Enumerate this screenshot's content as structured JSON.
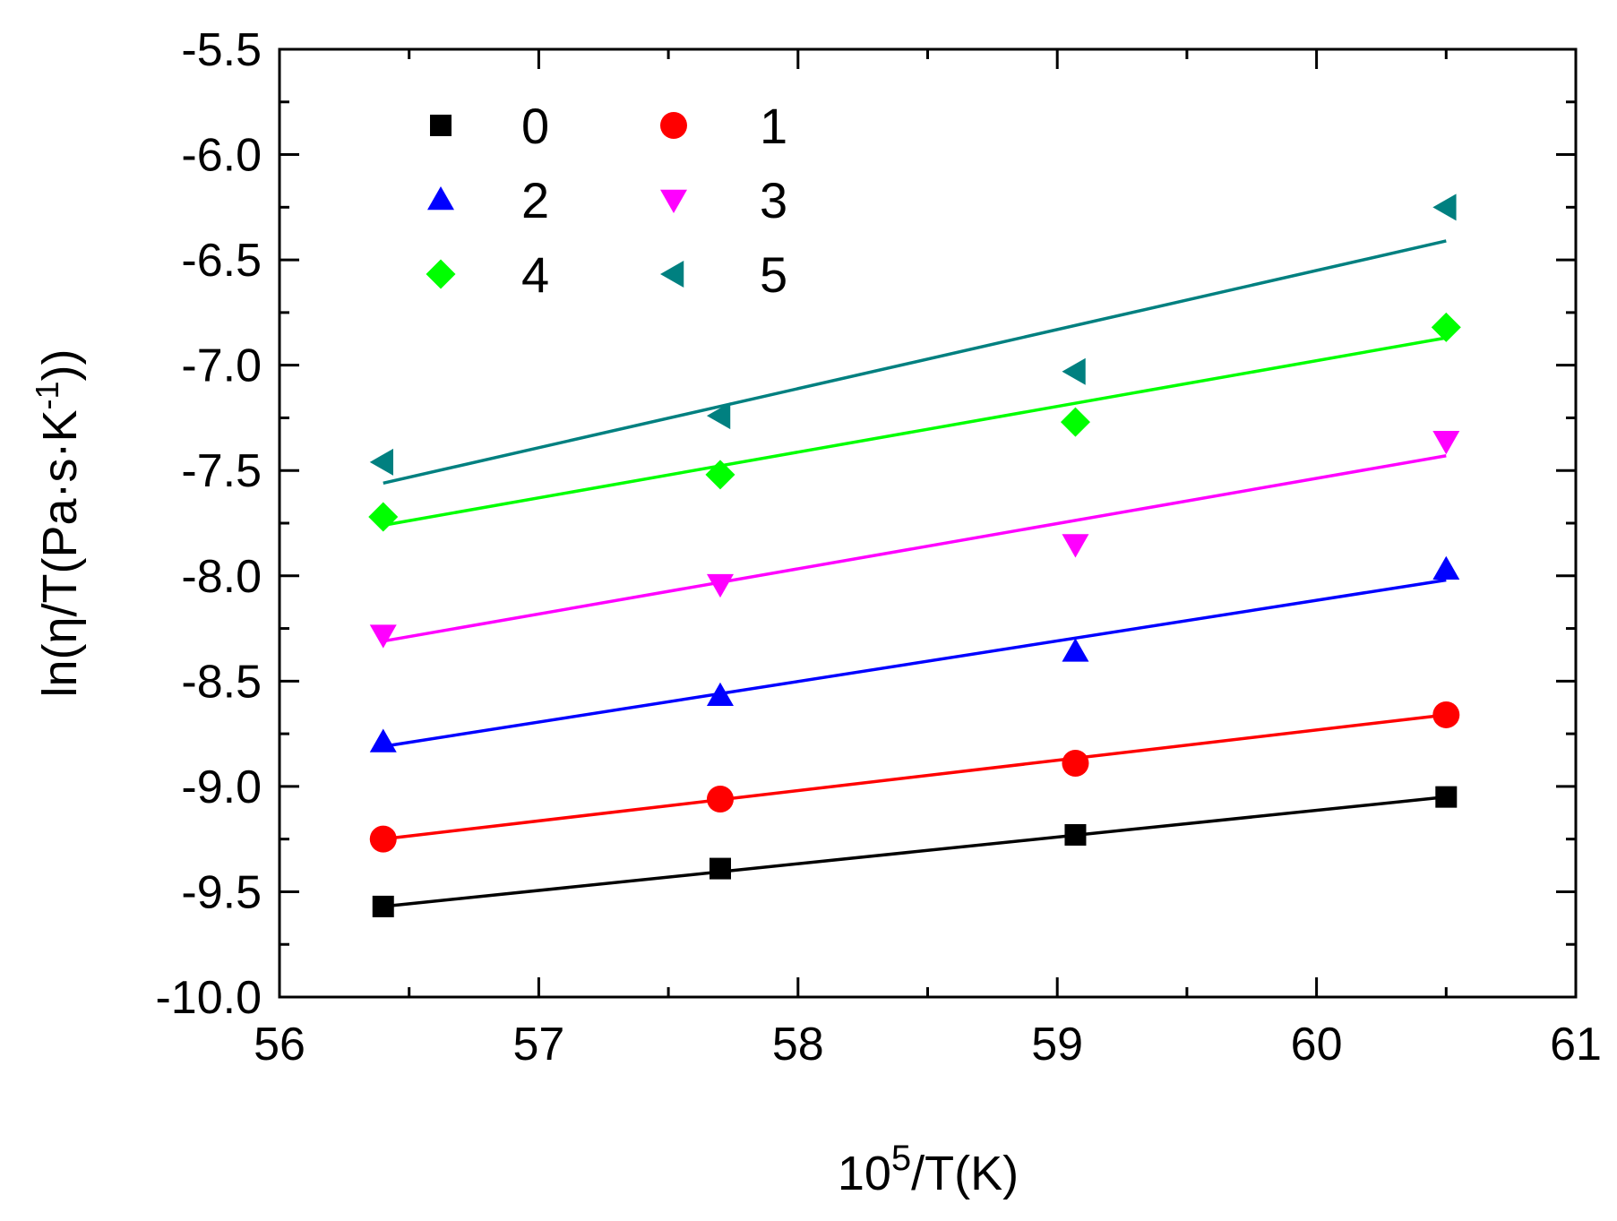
{
  "chart_data": {
    "type": "scatter",
    "title": "",
    "xlabel": {
      "base": "10",
      "sup": "5",
      "rest": "/T(K)"
    },
    "ylabel": {
      "pre": "ln(η/T(Pa·s·K",
      "sup": "-1",
      "post": "))"
    },
    "xlim": [
      56,
      61
    ],
    "ylim": [
      -10.0,
      -5.5
    ],
    "x_ticks": [
      56,
      57,
      58,
      59,
      60,
      61
    ],
    "x_tick_labels": [
      "56",
      "57",
      "58",
      "59",
      "60",
      "61"
    ],
    "y_ticks": [
      -10.0,
      -9.5,
      -9.0,
      -8.5,
      -8.0,
      -7.5,
      -7.0,
      -6.5,
      -6.0,
      -5.5
    ],
    "y_tick_labels": [
      "-10.0",
      "-9.5",
      "-9.0",
      "-8.5",
      "-8.0",
      "-7.5",
      "-7.0",
      "-6.5",
      "-6.0",
      "-5.5"
    ],
    "grid": false,
    "legend_position": "top-left",
    "x": [
      56.4,
      57.7,
      59.07,
      60.5
    ],
    "series": [
      {
        "name": "0",
        "marker": "square",
        "color": "#000000",
        "values": [
          -9.57,
          -9.39,
          -9.23,
          -9.05
        ],
        "fit": [
          -9.57,
          -9.05
        ]
      },
      {
        "name": "1",
        "marker": "circle",
        "color": "#ff0000",
        "values": [
          -9.25,
          -9.06,
          -8.89,
          -8.66
        ],
        "fit": [
          -9.25,
          -8.66
        ]
      },
      {
        "name": "2",
        "marker": "triangle-up",
        "color": "#0000ff",
        "values": [
          -8.79,
          -8.57,
          -8.36,
          -7.97
        ],
        "fit": [
          -8.81,
          -8.02
        ]
      },
      {
        "name": "3",
        "marker": "triangle-down",
        "color": "#ff00ff",
        "values": [
          -8.28,
          -8.04,
          -7.85,
          -7.36
        ],
        "fit": [
          -8.31,
          -7.43
        ]
      },
      {
        "name": "4",
        "marker": "diamond",
        "color": "#00ff00",
        "values": [
          -7.72,
          -7.52,
          -7.27,
          -6.82
        ],
        "fit": [
          -7.76,
          -6.87
        ]
      },
      {
        "name": "5",
        "marker": "triangle-left",
        "color": "#008080",
        "values": [
          -7.46,
          -7.24,
          -7.03,
          -6.25
        ],
        "fit": [
          -7.56,
          -6.41
        ]
      }
    ]
  }
}
